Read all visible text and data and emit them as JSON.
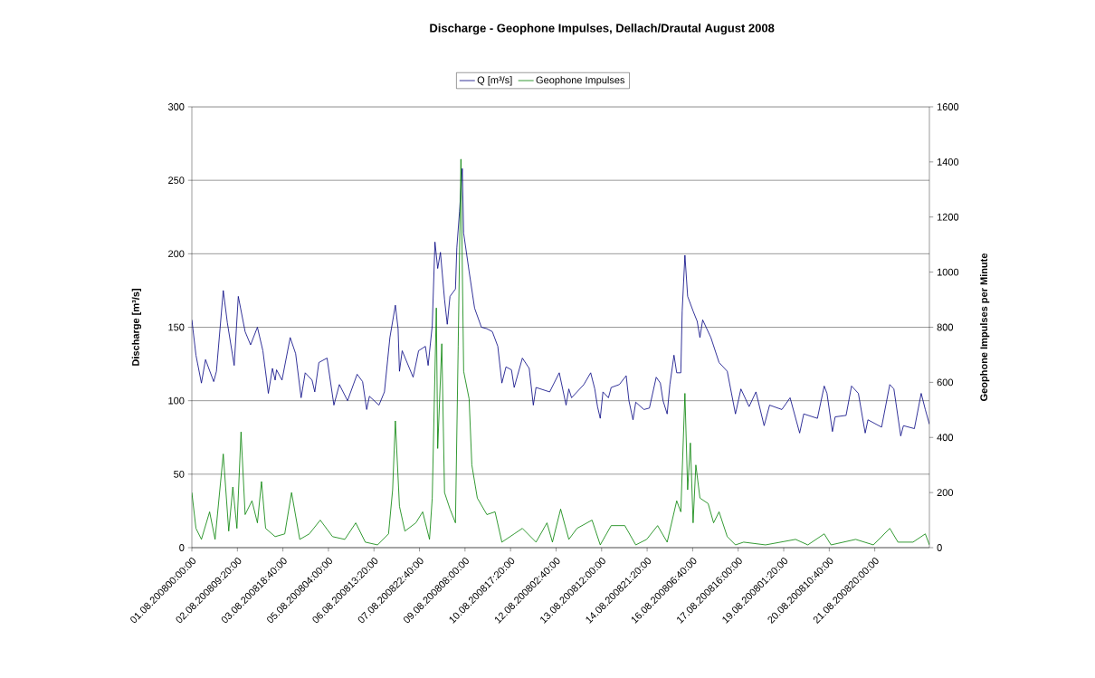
{
  "chart_data": {
    "type": "line",
    "title": "Discharge - Geophone Impulses, Dellach/Drautal  August 2008",
    "ylabel": "Discharge  [m³/s]",
    "y2label": "Geophone Impulses per Minute",
    "xlim": [
      "2008-08-01T00:00",
      "2008-08-23T12:00"
    ],
    "xticks": [
      {
        "value": "2008-08-01T00:00",
        "label": "01.08.200800:00:00"
      },
      {
        "value": "2008-08-02T09:20",
        "label": "02.08.200809:20:00"
      },
      {
        "value": "2008-08-03T18:40",
        "label": "03.08.200818:40:00"
      },
      {
        "value": "2008-08-05T04:00",
        "label": "05.08.200804:00:00"
      },
      {
        "value": "2008-08-06T13:20",
        "label": "06.08.200813:20:00"
      },
      {
        "value": "2008-08-07T22:40",
        "label": "07.08.200822:40:00"
      },
      {
        "value": "2008-08-09T08:00",
        "label": "09.08.200808:00:00"
      },
      {
        "value": "2008-08-10T17:20",
        "label": "10.08.200817:20:00"
      },
      {
        "value": "2008-08-12T02:40",
        "label": "12.08.200802:40:00"
      },
      {
        "value": "2008-08-13T12:00",
        "label": "13.08.200812:00:00"
      },
      {
        "value": "2008-08-14T21:20",
        "label": "14.08.200821:20:00"
      },
      {
        "value": "2008-08-16T06:40",
        "label": "16.08.200806:40:00"
      },
      {
        "value": "2008-08-17T16:00",
        "label": "17.08.200816:00:00"
      },
      {
        "value": "2008-08-19T01:20",
        "label": "19.08.200801:20:00"
      },
      {
        "value": "2008-08-20T10:40",
        "label": "20.08.200810:40:00"
      },
      {
        "value": "2008-08-21T20:00",
        "label": "21.08.200820:00:00"
      }
    ],
    "ylim": [
      0,
      300
    ],
    "yticks": [
      0,
      50,
      100,
      150,
      200,
      250,
      300
    ],
    "y2lim": [
      0,
      1600
    ],
    "y2ticks": [
      0,
      200,
      400,
      600,
      800,
      1000,
      1200,
      1400,
      1600
    ],
    "grid": "y",
    "legend": "top",
    "series": [
      {
        "name": "Q [m³/s]",
        "color": "#000080",
        "x": [
          "2008-08-01T00:00",
          "2008-08-01T03:00",
          "2008-08-01T07:00",
          "2008-08-01T10:00",
          "2008-08-01T16:00",
          "2008-08-01T18:00",
          "2008-08-01T23:00",
          "2008-08-02T02:00",
          "2008-08-02T07:00",
          "2008-08-02T10:00",
          "2008-08-02T15:00",
          "2008-08-02T19:00",
          "2008-08-03T00:00",
          "2008-08-03T04:00",
          "2008-08-03T08:00",
          "2008-08-03T11:00",
          "2008-08-03T13:00",
          "2008-08-03T14:00",
          "2008-08-03T18:00",
          "2008-08-04T00:00",
          "2008-08-04T04:00",
          "2008-08-04T08:00",
          "2008-08-04T11:00",
          "2008-08-04T16:00",
          "2008-08-04T18:00",
          "2008-08-04T21:00",
          "2008-08-05T03:00",
          "2008-08-05T08:00",
          "2008-08-05T12:00",
          "2008-08-05T18:00",
          "2008-08-06T01:00",
          "2008-08-06T05:00",
          "2008-08-06T08:00",
          "2008-08-06T10:00",
          "2008-08-06T17:00",
          "2008-08-06T21:00",
          "2008-08-07T01:00",
          "2008-08-07T05:00",
          "2008-08-07T07:00",
          "2008-08-07T08:00",
          "2008-08-07T10:00",
          "2008-08-07T18:00",
          "2008-08-07T22:00",
          "2008-08-08T03:00",
          "2008-08-08T05:00",
          "2008-08-08T08:00",
          "2008-08-08T10:00",
          "2008-08-08T12:00",
          "2008-08-08T14:00",
          "2008-08-08T17:00",
          "2008-08-08T19:00",
          "2008-08-08T21:00",
          "2008-08-09T01:00",
          "2008-08-09T02:00",
          "2008-08-09T04:00",
          "2008-08-09T06:00",
          "2008-08-09T07:00",
          "2008-08-09T11:00",
          "2008-08-09T15:00",
          "2008-08-09T20:00",
          "2008-08-10T00:00",
          "2008-08-10T04:00",
          "2008-08-10T08:00",
          "2008-08-10T11:00",
          "2008-08-10T14:00",
          "2008-08-10T18:00",
          "2008-08-10T20:00",
          "2008-08-11T02:00",
          "2008-08-11T07:00",
          "2008-08-11T10:00",
          "2008-08-11T12:00",
          "2008-08-11T22:00",
          "2008-08-12T05:00",
          "2008-08-12T10:00",
          "2008-08-12T12:00",
          "2008-08-12T14:00",
          "2008-08-12T23:00",
          "2008-08-13T04:00",
          "2008-08-13T07:00",
          "2008-08-13T09:00",
          "2008-08-13T11:00",
          "2008-08-13T13:00",
          "2008-08-13T17:00",
          "2008-08-13T19:00",
          "2008-08-14T01:00",
          "2008-08-14T06:00",
          "2008-08-14T08:00",
          "2008-08-14T11:00",
          "2008-08-14T13:00",
          "2008-08-14T19:00",
          "2008-08-14T23:00",
          "2008-08-15T04:00",
          "2008-08-15T07:00",
          "2008-08-15T09:00",
          "2008-08-15T12:00",
          "2008-08-15T14:00",
          "2008-08-15T17:00",
          "2008-08-15T19:00",
          "2008-08-15T22:00",
          "2008-08-15T23:00",
          "2008-08-16T01:00",
          "2008-08-16T03:00",
          "2008-08-16T07:00",
          "2008-08-16T10:00",
          "2008-08-16T12:00",
          "2008-08-16T14:00",
          "2008-08-16T20:00",
          "2008-08-17T02:00",
          "2008-08-17T08:00",
          "2008-08-17T14:00",
          "2008-08-17T18:00",
          "2008-08-18T00:00",
          "2008-08-18T05:00",
          "2008-08-18T11:00",
          "2008-08-18T15:00",
          "2008-08-19T00:00",
          "2008-08-19T06:00",
          "2008-08-19T13:00",
          "2008-08-19T16:00",
          "2008-08-20T02:00",
          "2008-08-20T07:00",
          "2008-08-20T09:00",
          "2008-08-20T13:00",
          "2008-08-20T15:00",
          "2008-08-20T23:00",
          "2008-08-21T03:00",
          "2008-08-21T08:00",
          "2008-08-21T13:00",
          "2008-08-21T15:00",
          "2008-08-22T01:00",
          "2008-08-22T07:00",
          "2008-08-22T10:00",
          "2008-08-22T15:00",
          "2008-08-22T17:00",
          "2008-08-23T01:00",
          "2008-08-23T06:00",
          "2008-08-23T09:00",
          "2008-08-23T12:00"
        ],
        "values": [
          155,
          131,
          112,
          128,
          113,
          120,
          175,
          153,
          124,
          171,
          147,
          138,
          150,
          134,
          105,
          122,
          114,
          121,
          114,
          143,
          132,
          102,
          119,
          114,
          106,
          126,
          129,
          97,
          111,
          100,
          118,
          113,
          94,
          103,
          97,
          106,
          143,
          165,
          149,
          120,
          134,
          116,
          134,
          137,
          124,
          151,
          208,
          190,
          201,
          169,
          152,
          171,
          176,
          204,
          229,
          258,
          214,
          188,
          163,
          150,
          149,
          147,
          137,
          112,
          123,
          121,
          109,
          129,
          122,
          97,
          109,
          106,
          119,
          97,
          108,
          102,
          111,
          119,
          108,
          96,
          88,
          106,
          102,
          109,
          111,
          117,
          100,
          87,
          99,
          94,
          95,
          116,
          112,
          100,
          91,
          111,
          131,
          119,
          119,
          161,
          199,
          171,
          161,
          154,
          143,
          155,
          143,
          126,
          120,
          91,
          108,
          96,
          106,
          83,
          97,
          94,
          102,
          78,
          91,
          88,
          110,
          105,
          79,
          89,
          90,
          110,
          105,
          78,
          87,
          82,
          111,
          108,
          76,
          83,
          81,
          105,
          94,
          84
        ]
      },
      {
        "name": "Geophone Impulses",
        "color": "#008000",
        "axis": "y2",
        "x": [
          "2008-08-01T00:00",
          "2008-08-01T03:00",
          "2008-08-01T07:00",
          "2008-08-01T13:00",
          "2008-08-01T17:00",
          "2008-08-01T23:00",
          "2008-08-02T03:00",
          "2008-08-02T06:00",
          "2008-08-02T09:00",
          "2008-08-02T12:00",
          "2008-08-02T15:00",
          "2008-08-02T20:00",
          "2008-08-03T00:00",
          "2008-08-03T03:00",
          "2008-08-03T06:00",
          "2008-08-03T13:00",
          "2008-08-03T20:00",
          "2008-08-04T01:00",
          "2008-08-04T07:00",
          "2008-08-04T14:00",
          "2008-08-04T22:00",
          "2008-08-05T07:00",
          "2008-08-05T16:00",
          "2008-08-06T00:00",
          "2008-08-06T07:00",
          "2008-08-06T16:00",
          "2008-08-07T00:00",
          "2008-08-07T03:00",
          "2008-08-07T05:00",
          "2008-08-07T08:00",
          "2008-08-07T12:00",
          "2008-08-07T20:00",
          "2008-08-08T01:00",
          "2008-08-08T06:00",
          "2008-08-08T08:00",
          "2008-08-08T11:00",
          "2008-08-08T12:00",
          "2008-08-08T15:00",
          "2008-08-08T17:00",
          "2008-08-08T21:00",
          "2008-08-09T01:00",
          "2008-08-09T03:00",
          "2008-08-09T05:00",
          "2008-08-09T07:00",
          "2008-08-09T11:00",
          "2008-08-09T13:00",
          "2008-08-09T17:00",
          "2008-08-10T00:00",
          "2008-08-10T06:00",
          "2008-08-10T11:00",
          "2008-08-10T20:00",
          "2008-08-11T02:00",
          "2008-08-11T12:00",
          "2008-08-11T20:00",
          "2008-08-12T00:00",
          "2008-08-12T06:00",
          "2008-08-12T12:00",
          "2008-08-12T18:00",
          "2008-08-13T05:00",
          "2008-08-13T11:00",
          "2008-08-13T19:00",
          "2008-08-14T05:00",
          "2008-08-14T13:00",
          "2008-08-14T21:00",
          "2008-08-15T05:00",
          "2008-08-15T12:00",
          "2008-08-15T19:00",
          "2008-08-15T22:00",
          "2008-08-16T01:00",
          "2008-08-16T03:00",
          "2008-08-16T05:00",
          "2008-08-16T07:00",
          "2008-08-16T09:00",
          "2008-08-16T12:00",
          "2008-08-16T18:00",
          "2008-08-16T22:00",
          "2008-08-17T02:00",
          "2008-08-17T08:00",
          "2008-08-17T14:00",
          "2008-08-17T20:00",
          "2008-08-18T12:00",
          "2008-08-19T10:00",
          "2008-08-19T19:00",
          "2008-08-20T07:00",
          "2008-08-20T12:00",
          "2008-08-21T06:00",
          "2008-08-21T19:00",
          "2008-08-22T07:00",
          "2008-08-22T13:00",
          "2008-08-23T00:00",
          "2008-08-23T09:00",
          "2008-08-23T12:00"
        ],
        "values": [
          200,
          70,
          30,
          130,
          30,
          340,
          60,
          220,
          70,
          420,
          120,
          170,
          90,
          240,
          70,
          40,
          50,
          200,
          30,
          50,
          100,
          40,
          30,
          90,
          20,
          10,
          50,
          210,
          460,
          150,
          60,
          90,
          130,
          30,
          180,
          870,
          360,
          740,
          200,
          140,
          90,
          730,
          1410,
          640,
          540,
          300,
          180,
          120,
          130,
          20,
          50,
          70,
          20,
          90,
          20,
          140,
          30,
          70,
          100,
          10,
          80,
          80,
          10,
          30,
          80,
          20,
          170,
          130,
          560,
          210,
          380,
          90,
          300,
          180,
          160,
          90,
          130,
          40,
          10,
          20,
          10,
          30,
          10,
          50,
          10,
          30,
          10,
          70,
          20,
          20,
          50,
          10
        ]
      }
    ]
  }
}
